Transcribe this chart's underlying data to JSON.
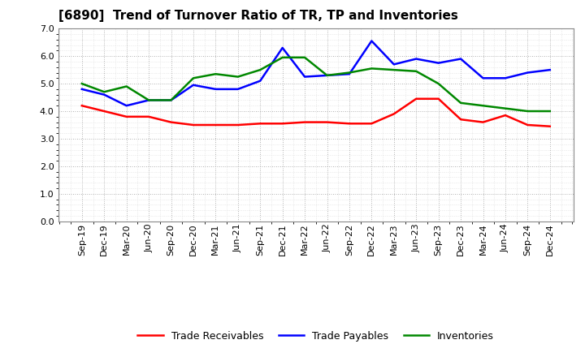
{
  "title": "[6890]  Trend of Turnover Ratio of TR, TP and Inventories",
  "x_labels": [
    "Sep-19",
    "Dec-19",
    "Mar-20",
    "Jun-20",
    "Sep-20",
    "Dec-20",
    "Mar-21",
    "Jun-21",
    "Sep-21",
    "Dec-21",
    "Mar-22",
    "Jun-22",
    "Sep-22",
    "Dec-22",
    "Mar-23",
    "Jun-23",
    "Sep-23",
    "Dec-23",
    "Mar-24",
    "Jun-24",
    "Sep-24",
    "Dec-24"
  ],
  "trade_receivables": [
    4.2,
    4.0,
    3.8,
    3.8,
    3.6,
    3.5,
    3.5,
    3.5,
    3.55,
    3.55,
    3.6,
    3.6,
    3.55,
    3.55,
    3.9,
    4.45,
    4.45,
    3.7,
    3.6,
    3.85,
    3.5,
    3.45
  ],
  "trade_payables": [
    4.8,
    4.6,
    4.2,
    4.4,
    4.4,
    4.95,
    4.8,
    4.8,
    5.1,
    6.3,
    5.25,
    5.3,
    5.35,
    6.55,
    5.7,
    5.9,
    5.75,
    5.9,
    5.2,
    5.2,
    5.4,
    5.5
  ],
  "inventories": [
    5.0,
    4.7,
    4.9,
    4.4,
    4.4,
    5.2,
    5.35,
    5.25,
    5.5,
    5.95,
    5.95,
    5.3,
    5.4,
    5.55,
    5.5,
    5.45,
    5.0,
    4.3,
    4.2,
    4.1,
    4.0,
    4.0
  ],
  "ylim": [
    0.0,
    7.0
  ],
  "yticks": [
    0.0,
    1.0,
    2.0,
    3.0,
    4.0,
    5.0,
    6.0,
    7.0
  ],
  "colors": {
    "trade_receivables": "#ff0000",
    "trade_payables": "#0000ff",
    "inventories": "#008800"
  },
  "legend_labels": [
    "Trade Receivables",
    "Trade Payables",
    "Inventories"
  ],
  "background_color": "#ffffff",
  "grid_color": "#999999",
  "title_fontsize": 11,
  "tick_fontsize": 8,
  "linewidth": 1.8
}
